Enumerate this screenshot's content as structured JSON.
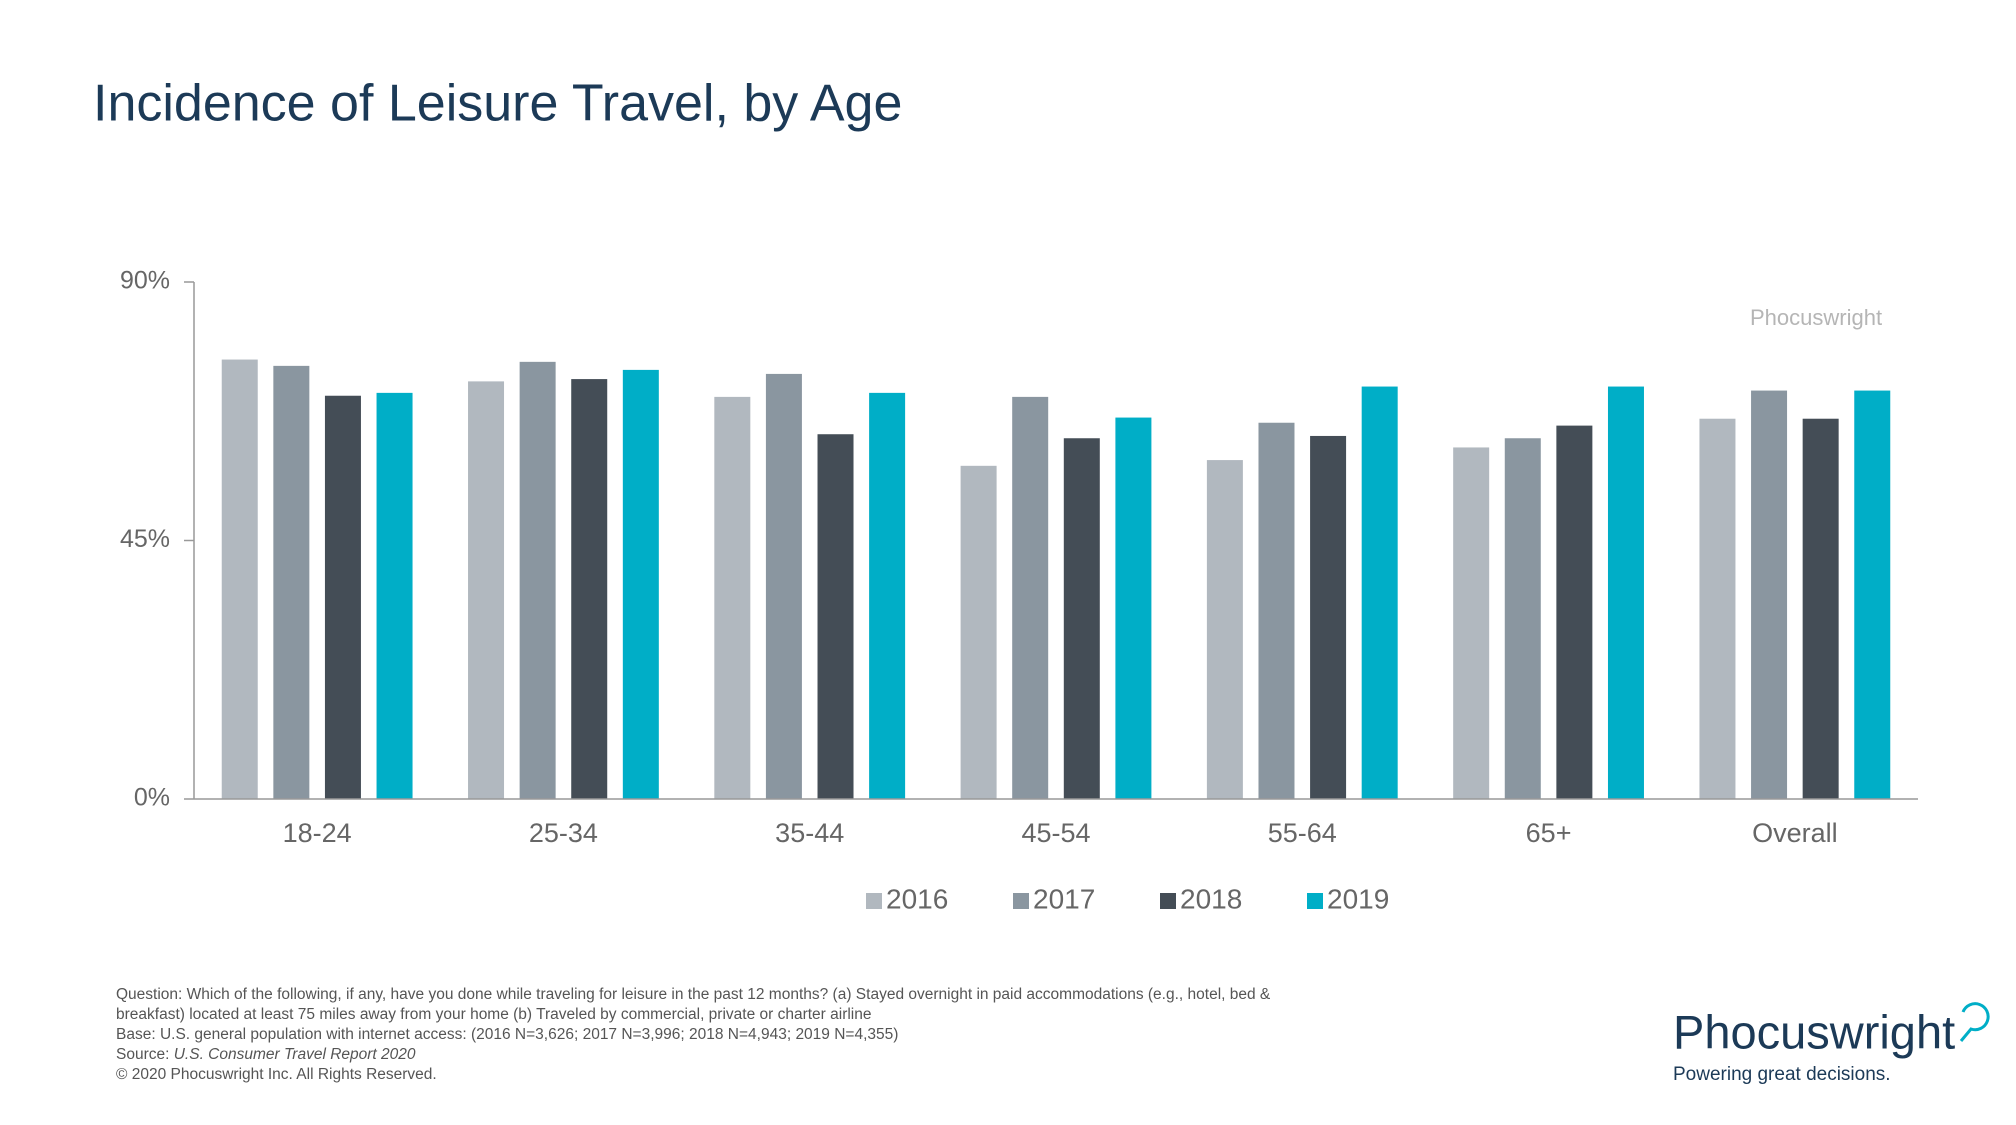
{
  "chart_data": {
    "type": "bar",
    "title": "Incidence of Leisure Travel, by Age",
    "watermark": "Phocuswright",
    "categories": [
      "18-24",
      "25-34",
      "35-44",
      "45-54",
      "55-64",
      "65+",
      "Overall"
    ],
    "series": [
      {
        "name": "2016",
        "color": "#b1b8bf",
        "values": [
          76.5,
          72.7,
          70,
          58,
          59,
          61.2,
          66.2
        ]
      },
      {
        "name": "2017",
        "color": "#8a96a0",
        "values": [
          75.4,
          76.1,
          74,
          70,
          65.5,
          62.8,
          71.1
        ]
      },
      {
        "name": "2018",
        "color": "#444d56",
        "values": [
          70.2,
          73.1,
          63.5,
          62.8,
          63.2,
          65,
          66.2
        ]
      },
      {
        "name": "2019",
        "color": "#00aec7",
        "values": [
          70.7,
          74.7,
          70.7,
          66.4,
          71.8,
          71.8,
          71.1
        ]
      }
    ],
    "ylim": [
      0,
      90
    ],
    "yticks": [
      {
        "value": 0,
        "label": "0%"
      },
      {
        "value": 45,
        "label": "45%"
      },
      {
        "value": 90,
        "label": "90%"
      }
    ],
    "grid": false,
    "legend": "bottom",
    "notes": [
      "Question: Which of the following, if any, have you done while traveling for leisure in the past 12 months? (a) Stayed overnight in paid accommodations (e.g., hotel, bed &",
      "breakfast) located at least 75 miles away from your home (b) Traveled by commercial, private or charter airline",
      "Base: U.S. general population with internet access: (2016 N=3,626; 2017 N=3,996; 2018 N=4,943; 2019 N=4,355)"
    ],
    "source_label": "Source:",
    "source": "U.S. Consumer Travel Report 2020",
    "copyright": "© 2020  Phocuswright Inc. All Rights Reserved.",
    "brand": "Phocuswright",
    "tagline": "Powering great decisions."
  }
}
